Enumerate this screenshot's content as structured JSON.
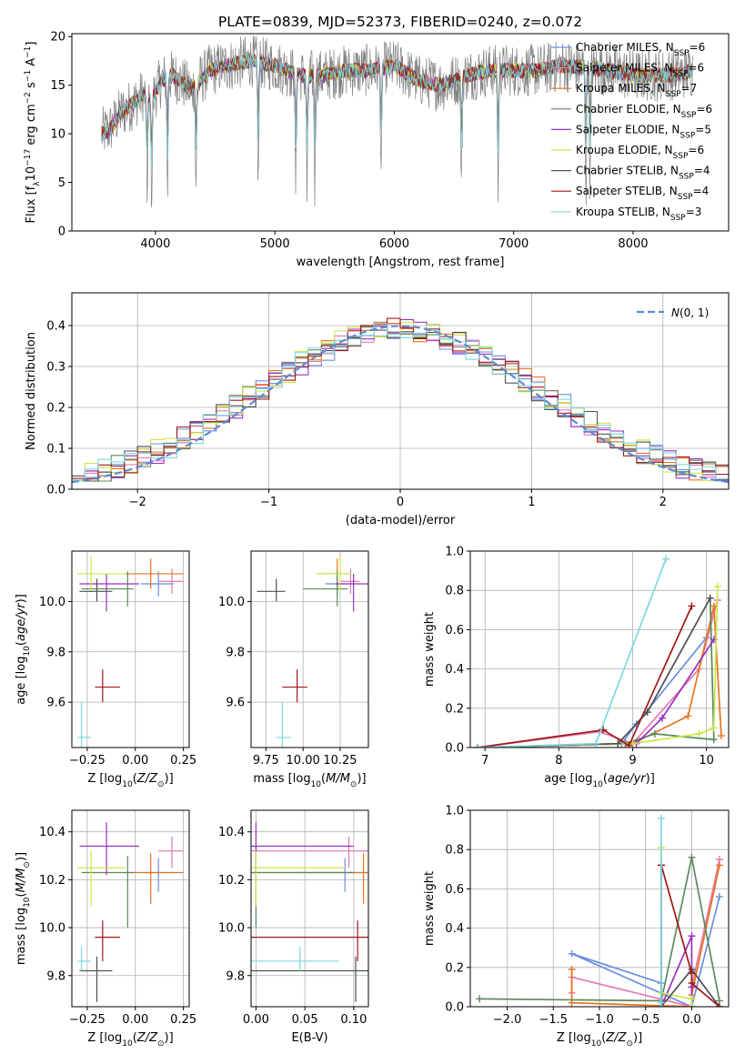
{
  "title": "PLATE=0839, MJD=52373, FIBERID=0240, z=0.072",
  "colors": {
    "grid": "#b0b0b0",
    "data": "#808080",
    "gaussian": "#5b8bd6"
  },
  "models": [
    {
      "label": "Chabrier MILES, N",
      "sub": "SSP",
      "tail": "=6",
      "color": "#6a8ee0"
    },
    {
      "label": "Salpeter MILES, N",
      "sub": "SSP",
      "tail": "=6",
      "color": "#e27cb6"
    },
    {
      "label": "Kroupa MILES, N",
      "sub": "SSP",
      "tail": "=7",
      "color": "#e8731d"
    },
    {
      "label": "Chabrier ELODIE, N",
      "sub": "SSP",
      "tail": "=6",
      "color": "#5c8a5c"
    },
    {
      "label": "Salpeter ELODIE, N",
      "sub": "SSP",
      "tail": "=5",
      "color": "#9a30c0"
    },
    {
      "label": "Kroupa ELODIE, N",
      "sub": "SSP",
      "tail": "=6",
      "color": "#c8e84a"
    },
    {
      "label": "Chabrier STELIB, N",
      "sub": "SSP",
      "tail": "=4",
      "color": "#505050"
    },
    {
      "label": "Salpeter STELIB, N",
      "sub": "SSP",
      "tail": "=4",
      "color": "#a01818"
    },
    {
      "label": "Kroupa STELIB, N",
      "sub": "SSP",
      "tail": "=3",
      "color": "#7ed8e0"
    }
  ],
  "chart_data": [
    {
      "id": "spectrum",
      "type": "line",
      "xlabel": "wavelength [Angstrom, rest frame]",
      "ylabel": "Flux [f",
      "ylabel_parts": [
        "Flux [f",
        "λ",
        "10",
        "−17",
        " erg cm",
        "−2",
        " s",
        "−1",
        " A",
        "−1",
        "]"
      ],
      "xlim": [
        3300,
        8800
      ],
      "ylim": [
        0,
        20.3
      ],
      "xticks": [
        4000,
        5000,
        6000,
        7000,
        8000
      ],
      "yticks": [
        0,
        5,
        10,
        15,
        20
      ],
      "grid": false,
      "legend": "right",
      "spectrum_knots": {
        "x": [
          3550,
          3620,
          3700,
          3800,
          3900,
          3950,
          4050,
          4150,
          4300,
          4450,
          4600,
          4800,
          5000,
          5200,
          5400,
          5600,
          5800,
          6000,
          6200,
          6400,
          6600,
          6800,
          7000,
          7200,
          7400,
          7600,
          7800,
          8000,
          8200,
          8400,
          8500
        ],
        "y": [
          10.0,
          10.5,
          12.0,
          13.0,
          14.0,
          13.0,
          15.5,
          16.0,
          14.5,
          16.5,
          17.0,
          17.5,
          17.0,
          16.0,
          16.0,
          16.5,
          16.5,
          17.0,
          15.5,
          15.0,
          16.0,
          16.5,
          16.5,
          16.5,
          17.0,
          16.8,
          16.5,
          16.0,
          16.0,
          16.2,
          16.5
        ]
      },
      "absorption_lines_x": [
        3930,
        3968,
        4101,
        4340,
        4861,
        5175,
        5270,
        5335,
        5890,
        6563,
        6870,
        7605,
        7640
      ]
    },
    {
      "id": "residuals",
      "type": "area",
      "xlabel": "(data-model)/error",
      "ylabel": "Normed distribution",
      "xlim": [
        -2.5,
        2.5
      ],
      "ylim": [
        0,
        0.48
      ],
      "xticks": [
        -2,
        -1,
        0,
        1,
        2
      ],
      "xtick_labels": [
        "−2",
        "−1",
        "0",
        "1",
        "2"
      ],
      "yticks": [
        0.0,
        0.1,
        0.2,
        0.3,
        0.4
      ],
      "ytick_labels": [
        "0.0",
        "0.1",
        "0.2",
        "0.3",
        "0.4"
      ],
      "grid": true,
      "legend": "top-right",
      "legend_text": "N(0, 1)",
      "bin_width": 0.1
    },
    {
      "id": "age-vs-Z",
      "type": "scatter",
      "xlabel": "Z [log10(Z/Z⊙)]",
      "ylabel": "age [log10(age/yr)]",
      "xlim": [
        -0.33,
        0.28
      ],
      "ylim": [
        9.42,
        10.2
      ],
      "xticks": [
        -0.25,
        0.0,
        0.25
      ],
      "xtick_labels": [
        "−0.25",
        "0.00",
        "0.25"
      ],
      "yticks": [
        9.6,
        9.8,
        10.0
      ],
      "ytick_labels": [
        "9.6",
        "9.8",
        "10.0"
      ],
      "grid": true
    },
    {
      "id": "age-vs-mass",
      "type": "scatter",
      "xlabel": "mass [log10(M/M⊙)]",
      "xlim": [
        9.65,
        10.44
      ],
      "ylim": [
        9.42,
        10.2
      ],
      "xticks": [
        9.75,
        10.0,
        10.25
      ],
      "xtick_labels": [
        "9.75",
        "10.00",
        "10.25"
      ],
      "yticks": [
        9.6,
        9.8,
        10.0
      ],
      "ytick_labels": [
        "9.6",
        "9.8",
        "10.0"
      ],
      "grid": true
    },
    {
      "id": "massweight-vs-age",
      "type": "line",
      "xlabel": "age [log10(age/yr)]",
      "ylabel": "mass weight",
      "xlim": [
        6.8,
        10.3
      ],
      "ylim": [
        0,
        1.0
      ],
      "xticks": [
        7,
        8,
        9,
        10
      ],
      "xtick_labels": [
        "7",
        "8",
        "9",
        "10"
      ],
      "yticks": [
        0.0,
        0.2,
        0.4,
        0.6,
        0.8,
        1.0
      ],
      "ytick_labels": [
        "0.0",
        "0.2",
        "0.4",
        "0.6",
        "0.8",
        "1.0"
      ],
      "grid": true
    },
    {
      "id": "mass-vs-Z",
      "type": "scatter",
      "xlabel": "Z [log10(Z/Z⊙)]",
      "ylabel": "mass [log10(M/M⊙)]",
      "xlim": [
        -0.33,
        0.28
      ],
      "ylim": [
        9.67,
        10.49
      ],
      "xticks": [
        -0.25,
        0.0,
        0.25
      ],
      "xtick_labels": [
        "−0.25",
        "0.00",
        "0.25"
      ],
      "yticks": [
        9.8,
        10.0,
        10.2,
        10.4
      ],
      "ytick_labels": [
        "9.8",
        "10.0",
        "10.2",
        "10.4"
      ],
      "grid": true
    },
    {
      "id": "mass-vs-EBV",
      "type": "scatter",
      "xlabel": "E(B-V)",
      "xlim": [
        -0.005,
        0.115
      ],
      "ylim": [
        9.67,
        10.49
      ],
      "xticks": [
        0.0,
        0.05,
        0.1
      ],
      "xtick_labels": [
        "0.00",
        "0.05",
        "0.10"
      ],
      "yticks": [
        9.8,
        10.0,
        10.2,
        10.4
      ],
      "ytick_labels": [
        "9.8",
        "10.0",
        "10.2",
        "10.4"
      ],
      "grid": true
    },
    {
      "id": "massweight-vs-Z",
      "type": "line",
      "xlabel": "Z [log10(Z/Z⊙)]",
      "ylabel": "mass weight",
      "xlim": [
        -2.4,
        0.4
      ],
      "ylim": [
        0,
        1.0
      ],
      "xticks": [
        -2.0,
        -1.5,
        -1.0,
        -0.5,
        0.0
      ],
      "xtick_labels": [
        "−2.0",
        "−1.5",
        "−1.0",
        "−0.5",
        "0.0"
      ],
      "yticks": [
        0.0,
        0.2,
        0.4,
        0.6,
        0.8,
        1.0
      ],
      "ytick_labels": [
        "0.0",
        "0.2",
        "0.4",
        "0.6",
        "0.8",
        "1.0"
      ],
      "grid": true
    }
  ],
  "estimates": [
    {
      "Z": 0.12,
      "Ze": [
        0.09,
        0.08
      ],
      "age": 10.07,
      "agee": [
        0.05,
        0.05
      ],
      "mass": 10.23,
      "masse": [
        0.08,
        0.06
      ],
      "ebv": 0.091,
      "ebve": [
        0.05,
        0.07
      ]
    },
    {
      "Z": 0.19,
      "Ze": [
        0.07,
        0.06
      ],
      "age": 10.08,
      "agee": [
        0.05,
        0.05
      ],
      "mass": 10.32,
      "masse": [
        0.07,
        0.06
      ],
      "ebv": 0.095,
      "ebve": [
        0.1,
        0.13
      ]
    },
    {
      "Z": 0.08,
      "Ze": [
        0.13,
        0.17
      ],
      "age": 10.11,
      "agee": [
        0.06,
        0.06
      ],
      "mass": 10.23,
      "masse": [
        0.13,
        0.08
      ],
      "ebv": 0.11,
      "ebve": [
        0.18,
        0.14
      ]
    },
    {
      "Z": -0.04,
      "Ze": [
        0.24,
        0.03
      ],
      "age": 10.05,
      "agee": [
        0.07,
        0.07
      ],
      "mass": 10.23,
      "masse": [
        0.23,
        0.07
      ],
      "ebv": 0.0,
      "ebve": [
        0.09,
        0.1
      ]
    },
    {
      "Z": -0.15,
      "Ze": [
        0.14,
        0.17
      ],
      "age": 10.07,
      "agee": [
        0.11,
        0.04
      ],
      "mass": 10.34,
      "masse": [
        0.12,
        0.1
      ],
      "ebv": 0.0,
      "ebve": [
        0.06,
        0.1
      ]
    },
    {
      "Z": -0.23,
      "Ze": [
        0.07,
        0.18
      ],
      "age": 10.11,
      "agee": [
        0.07,
        0.07
      ],
      "mass": 10.25,
      "masse": [
        0.16,
        0.07
      ],
      "ebv": 0.0,
      "ebve": [
        0.21,
        0.09
      ]
    },
    {
      "Z": -0.2,
      "Ze": [
        0.09,
        0.08
      ],
      "age": 10.04,
      "agee": [
        0.04,
        0.05
      ],
      "mass": 9.82,
      "masse": [
        0.13,
        0.06
      ],
      "ebv": 0.102,
      "ebve": [
        0.17,
        0.07
      ]
    },
    {
      "Z": -0.17,
      "Ze": [
        0.04,
        0.09
      ],
      "age": 9.66,
      "agee": [
        0.06,
        0.07
      ],
      "mass": 9.96,
      "masse": [
        0.1,
        0.07
      ],
      "ebv": 0.104,
      "ebve": [
        0.14,
        0.07
      ]
    },
    {
      "Z": -0.28,
      "Ze": [
        0.02,
        0.05
      ],
      "age": 9.46,
      "agee": [
        0.06,
        0.14
      ],
      "mass": 9.86,
      "masse": [
        0.04,
        0.06
      ],
      "ebv": 0.045,
      "ebve": [
        0.06,
        0.04
      ]
    }
  ],
  "estimate_extras": [
    {
      "model": 6,
      "age": 9.66,
      "agee": [
        0.12,
        0.18
      ],
      "Ze": [
        0.1,
        0.1
      ]
    },
    {
      "model": 6,
      "mass_at_age": 9.9,
      "masse": [
        0.15,
        0.12
      ]
    },
    {
      "model": 8,
      "agee": [
        0.04,
        0.12
      ]
    }
  ],
  "ssp_components": [
    {
      "ages": [
        6.9,
        8.85,
        9.05,
        10.0
      ],
      "w": [
        0.0,
        0.02,
        0.12,
        0.56
      ],
      "Z": [
        -0.33,
        -1.3,
        0.0,
        0.3
      ],
      "wz": [
        0.12,
        0.27,
        0.0,
        0.56
      ]
    },
    {
      "ages": [
        6.9,
        8.55,
        9.0,
        9.9,
        10.15
      ],
      "w": [
        0.0,
        0.08,
        0.02,
        0.4,
        0.75
      ],
      "Z": [
        -1.3,
        -1.3,
        0.0,
        0.0,
        0.3
      ],
      "wz": [
        0.07,
        0.15,
        0.0,
        0.1,
        0.75
      ]
    },
    {
      "ages": [
        6.9,
        9.0,
        9.75,
        10.1,
        10.2
      ],
      "w": [
        0.0,
        0.02,
        0.16,
        0.72,
        0.06
      ],
      "Z": [
        -1.3,
        -1.3,
        0.0,
        0.0,
        0.3
      ],
      "wz": [
        0.19,
        0.02,
        0.0,
        0.06,
        0.72
      ]
    },
    {
      "ages": [
        6.9,
        8.9,
        9.3,
        10.1,
        10.05
      ],
      "w": [
        0.0,
        0.02,
        0.07,
        0.04,
        0.76
      ],
      "Z": [
        -2.3,
        -0.33,
        0.0,
        0.3
      ],
      "wz": [
        0.04,
        0.03,
        0.76,
        0.03
      ]
    },
    {
      "ages": [
        6.9,
        9.05,
        9.4,
        10.1
      ],
      "w": [
        0.0,
        0.02,
        0.15,
        0.55
      ],
      "Z": [
        -0.33,
        0.0,
        0.0,
        0.0
      ],
      "wz": [
        0.0,
        0.36,
        0.1,
        0.0
      ]
    },
    {
      "ages": [
        6.9,
        9.0,
        9.9,
        10.1,
        10.15
      ],
      "w": [
        0.0,
        0.02,
        0.07,
        0.1,
        0.82
      ],
      "Z": [
        -0.33,
        -0.33,
        0.0,
        0.0,
        0.0
      ],
      "wz": [
        0.81,
        0.07,
        0.04,
        0.0,
        0.0
      ]
    },
    {
      "ages": [
        6.9,
        8.8,
        9.2,
        10.05
      ],
      "w": [
        0.0,
        0.02,
        0.18,
        0.76
      ],
      "Z": [
        -0.33,
        -0.33,
        0.0,
        0.3
      ],
      "wz": [
        0.72,
        0.0,
        0.19,
        0.0
      ]
    },
    {
      "ages": [
        6.9,
        8.6,
        8.95,
        9.8
      ],
      "w": [
        0.0,
        0.09,
        0.01,
        0.72
      ],
      "Z": [
        -0.33,
        0.0,
        0.0,
        0.3
      ],
      "wz": [
        0.72,
        0.17,
        0.12,
        0.0
      ]
    },
    {
      "ages": [
        6.9,
        8.5,
        9.45
      ],
      "w": [
        0.0,
        0.02,
        0.96
      ],
      "Z": [
        -0.33,
        -0.33,
        -0.33
      ],
      "wz": [
        0.0,
        0.02,
        0.96
      ]
    }
  ]
}
